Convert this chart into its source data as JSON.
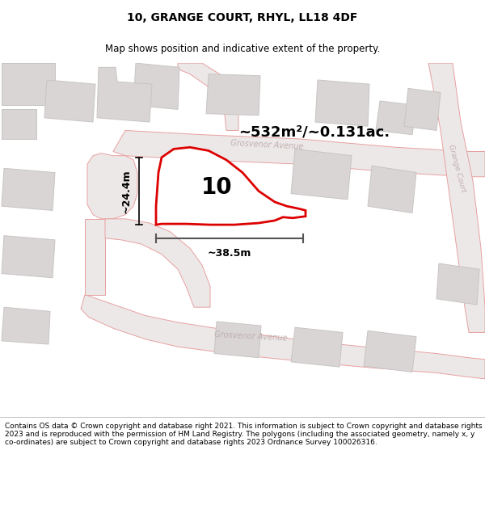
{
  "title": "10, GRANGE COURT, RHYL, LL18 4DF",
  "subtitle": "Map shows position and indicative extent of the property.",
  "area_label": "~532m²/~0.131ac.",
  "plot_number": "10",
  "width_label": "~38.5m",
  "height_label": "~24.4m",
  "footer": "Contains OS data © Crown copyright and database right 2021. This information is subject to Crown copyright and database rights 2023 and is reproduced with the permission of HM Land Registry. The polygons (including the associated geometry, namely x, y co-ordinates) are subject to Crown copyright and database rights 2023 Ordnance Survey 100026316.",
  "map_bg": "#f7f5f5",
  "road_line_color": "#e8a0a0",
  "road_fill_color": "#ede8e8",
  "plot_outline_color": "#dd0000",
  "building_color": "#d9d5d5",
  "building_edge_color": "#c8c4c4",
  "title_fontsize": 10,
  "subtitle_fontsize": 8.5,
  "footer_fontsize": 6.5,
  "area_label_fontsize": 13,
  "plot_num_fontsize": 20,
  "dim_fontsize": 9
}
